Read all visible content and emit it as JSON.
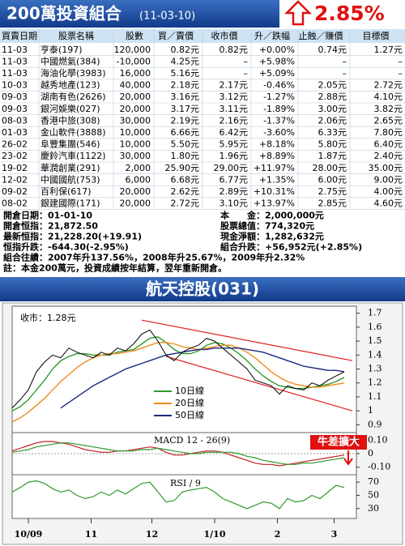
{
  "header": {
    "title": "200萬投資組合",
    "subtitle": "(11-03-10)",
    "change": "2.85%"
  },
  "table": {
    "columns": [
      "買賣日期",
      "股票名稱",
      "股數",
      "買／賣價",
      "收市價",
      "升／跌幅",
      "止蝕／賺價",
      "目標價"
    ],
    "rows": [
      [
        "11-03",
        "亨泰(197)",
        "120,000",
        "0.82元",
        "0.82元",
        "+0.00%",
        "0.74元",
        "1.27元"
      ],
      [
        "11-03",
        "中國燃氣(384)",
        "-10,000",
        "4.25元",
        "–",
        "+5.98%",
        "–",
        "–"
      ],
      [
        "11-03",
        "海油化學(3983)",
        "16,000",
        "5.16元",
        "–",
        "+5.09%",
        "–",
        "–"
      ],
      [
        "10-03",
        "越秀地產(123)",
        "40,000",
        "2.18元",
        "2.17元",
        "-0.46%",
        "2.05元",
        "2.72元"
      ],
      [
        "09-03",
        "湖南有色(2626)",
        "20,000",
        "3.16元",
        "3.12元",
        "-1.27%",
        "2.88元",
        "4.10元"
      ],
      [
        "09-03",
        "銀河娛樂(027)",
        "20,000",
        "3.17元",
        "3.11元",
        "-1.89%",
        "3.00元",
        "3.82元"
      ],
      [
        "08-03",
        "香港中旅(308)",
        "30,000",
        "2.19元",
        "2.16元",
        "-1.37%",
        "2.06元",
        "2.65元"
      ],
      [
        "01-03",
        "金山軟件(3888)",
        "10,000",
        "6.66元",
        "6.42元",
        "-3.60%",
        "6.33元",
        "7.80元"
      ],
      [
        "26-02",
        "阜豐集團(546)",
        "10,000",
        "5.50元",
        "5.95元",
        "+8.18%",
        "5.80元",
        "6.40元"
      ],
      [
        "23-02",
        "慶鈴汽車(1122)",
        "30,000",
        "1.80元",
        "1.96元",
        "+8.89%",
        "1.87元",
        "2.40元"
      ],
      [
        "19-02",
        "華潤創業(291)",
        "2,000",
        "25.90元",
        "29.00元",
        "+11.97%",
        "28.00元",
        "35.00元"
      ],
      [
        "12-02",
        "中國國航(753)",
        "6,000",
        "6.68元",
        "6.77元",
        "+1.35%",
        "6.00元",
        "9.00元"
      ],
      [
        "09-02",
        "百利保(617)",
        "20,000",
        "2.62元",
        "2.89元",
        "+10.31%",
        "2.75元",
        "4.00元"
      ],
      [
        "08-02",
        "銀建國際(171)",
        "20,000",
        "2.72元",
        "3.10元",
        "+13.97%",
        "2.85元",
        "4.60元"
      ]
    ]
  },
  "summary": {
    "left": [
      "開倉日期：01-01-10",
      "開倉恒指：21,872.50",
      "最新恒指：21,228.20(+19.91)",
      "恒指升跌：-644.30(-2.95%)"
    ],
    "right": [
      "本　　金：2,000,000元",
      "股票總值：774,320元",
      "現金淨額：1,282,632元",
      "組合升跌：+56,952元(+2.85%)"
    ],
    "notes": [
      "組合往績：2007年升137.56%，2008年升25.67%，2009年升2.32%",
      "註：本金200萬元，投資成績按年結算，翌年重新開倉。"
    ]
  },
  "chart_data": {
    "type": "line",
    "title": "航天控股(031)",
    "close_label": "收市：1.28元",
    "x": [
      0,
      4,
      8,
      12,
      16,
      20,
      24,
      28,
      32,
      36,
      40,
      44,
      48,
      52,
      56,
      60,
      64,
      68,
      72,
      76,
      80,
      84,
      88,
      92,
      96,
      100,
      104,
      108,
      112,
      116,
      120,
      124,
      128,
      132,
      136,
      140,
      144,
      148,
      152,
      156,
      160,
      164
    ],
    "xlim": [
      0,
      170
    ],
    "xticks": [
      {
        "value": 8,
        "label": "10/09"
      },
      {
        "value": 39,
        "label": "11"
      },
      {
        "value": 69,
        "label": "12"
      },
      {
        "value": 100,
        "label": "1/10"
      },
      {
        "value": 131,
        "label": "2"
      },
      {
        "value": 159,
        "label": "3"
      }
    ],
    "ylim": [
      0.85,
      1.75
    ],
    "yticks": [
      0.9,
      1,
      1.1,
      1.2,
      1.3,
      1.4,
      1.5,
      1.6,
      1.7
    ],
    "close": {
      "color": "#000000",
      "values": [
        1.02,
        1.08,
        1.15,
        1.28,
        1.35,
        1.4,
        1.38,
        1.45,
        1.42,
        1.4,
        1.38,
        1.42,
        1.4,
        1.45,
        1.43,
        1.48,
        1.55,
        1.58,
        1.5,
        1.4,
        1.36,
        1.42,
        1.45,
        1.47,
        1.52,
        1.5,
        1.45,
        1.4,
        1.35,
        1.3,
        1.22,
        1.2,
        1.18,
        1.12,
        1.18,
        1.16,
        1.15,
        1.2,
        1.18,
        1.22,
        1.25,
        1.28
      ]
    },
    "series": [
      {
        "name": "10日線",
        "color": "#2e9a2e",
        "values": [
          1.0,
          1.03,
          1.08,
          1.15,
          1.22,
          1.3,
          1.36,
          1.39,
          1.41,
          1.41,
          1.4,
          1.4,
          1.4,
          1.42,
          1.43,
          1.44,
          1.48,
          1.52,
          1.53,
          1.49,
          1.44,
          1.41,
          1.41,
          1.43,
          1.47,
          1.49,
          1.48,
          1.45,
          1.41,
          1.36,
          1.3,
          1.25,
          1.21,
          1.18,
          1.17,
          1.16,
          1.16,
          1.17,
          1.18,
          1.19,
          1.21,
          1.24
        ]
      },
      {
        "name": "20日線",
        "color": "#f08a1c",
        "values": [
          0.92,
          0.95,
          0.99,
          1.04,
          1.09,
          1.15,
          1.21,
          1.26,
          1.31,
          1.35,
          1.38,
          1.4,
          1.41,
          1.41,
          1.42,
          1.43,
          1.45,
          1.47,
          1.49,
          1.49,
          1.48,
          1.46,
          1.45,
          1.44,
          1.45,
          1.46,
          1.47,
          1.47,
          1.45,
          1.42,
          1.38,
          1.33,
          1.28,
          1.24,
          1.21,
          1.19,
          1.18,
          1.17,
          1.17,
          1.18,
          1.19,
          1.2
        ]
      },
      {
        "name": "50日線",
        "color": "#1a2a80",
        "values": [
          null,
          null,
          null,
          null,
          null,
          null,
          1.02,
          1.06,
          1.1,
          1.14,
          1.18,
          1.21,
          1.24,
          1.27,
          1.3,
          1.32,
          1.34,
          1.36,
          1.38,
          1.4,
          1.41,
          1.42,
          1.43,
          1.44,
          1.44,
          1.45,
          1.45,
          1.45,
          1.45,
          1.44,
          1.43,
          1.42,
          1.4,
          1.38,
          1.36,
          1.34,
          1.32,
          1.31,
          1.3,
          1.29,
          1.29,
          1.28
        ]
      }
    ],
    "trend_lines": [
      {
        "color": "#e02020",
        "x": [
          64,
          168
        ],
        "y": [
          1.65,
          1.36
        ]
      },
      {
        "color": "#e02020",
        "x": [
          76,
          168
        ],
        "y": [
          1.39,
          1.0
        ]
      }
    ],
    "macd": {
      "label": "MACD 12 - 26(9)",
      "ylim": [
        -0.15,
        0.15
      ],
      "yticks": [
        {
          "value": 0.1,
          "label": "0.10"
        },
        0,
        {
          "value": -0.1,
          "label": "-0.10"
        }
      ],
      "annotation": "牛差擴大",
      "series": [
        {
          "color": "#c02020",
          "values": [
            0.02,
            0.04,
            0.06,
            0.08,
            0.09,
            0.09,
            0.08,
            0.07,
            0.05,
            0.03,
            0.02,
            0.01,
            0.01,
            0.02,
            0.02,
            0.03,
            0.04,
            0.05,
            0.04,
            0.01,
            -0.01,
            -0.01,
            0.0,
            0.01,
            0.02,
            0.02,
            0.01,
            -0.01,
            -0.03,
            -0.05,
            -0.07,
            -0.08,
            -0.08,
            -0.09,
            -0.08,
            -0.07,
            -0.06,
            -0.05,
            -0.04,
            -0.03,
            -0.02,
            -0.01
          ]
        },
        {
          "color": "#2e9a2e",
          "values": [
            0.01,
            0.02,
            0.03,
            0.05,
            0.06,
            0.07,
            0.08,
            0.08,
            0.07,
            0.06,
            0.05,
            0.04,
            0.03,
            0.02,
            0.02,
            0.02,
            0.03,
            0.03,
            0.04,
            0.03,
            0.02,
            0.01,
            0.0,
            0.0,
            0.01,
            0.01,
            0.01,
            0.01,
            0.0,
            -0.02,
            -0.03,
            -0.05,
            -0.06,
            -0.07,
            -0.08,
            -0.08,
            -0.07,
            -0.07,
            -0.06,
            -0.05,
            -0.04,
            -0.03
          ]
        }
      ]
    },
    "rsi": {
      "label": "RSI / 9",
      "color": "#2e9a2e",
      "ylim": [
        15,
        80
      ],
      "yticks": [
        70,
        50,
        30
      ],
      "values": [
        55,
        62,
        70,
        72,
        68,
        60,
        55,
        58,
        50,
        45,
        48,
        55,
        50,
        58,
        52,
        60,
        68,
        70,
        55,
        40,
        42,
        55,
        58,
        60,
        62,
        55,
        45,
        40,
        35,
        30,
        35,
        40,
        38,
        30,
        45,
        40,
        42,
        50,
        45,
        55,
        65,
        62
      ]
    }
  }
}
